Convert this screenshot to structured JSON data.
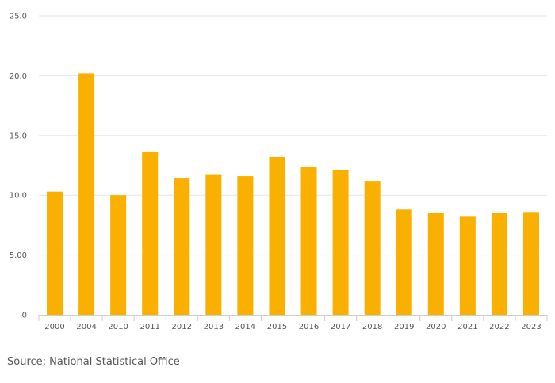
{
  "chart_data": {
    "type": "bar",
    "categories": [
      "2000",
      "2004",
      "2010",
      "2011",
      "2012",
      "2013",
      "2014",
      "2015",
      "2016",
      "2017",
      "2018",
      "2019",
      "2020",
      "2021",
      "2022",
      "2023"
    ],
    "values": [
      10.3,
      20.2,
      10.0,
      13.6,
      11.4,
      11.7,
      11.6,
      13.2,
      12.4,
      12.1,
      11.2,
      8.8,
      8.5,
      8.2,
      8.5,
      8.6
    ],
    "title": "",
    "xlabel": "",
    "ylabel": "",
    "ylim": [
      0,
      25
    ],
    "yticks": [
      0,
      5,
      10,
      15,
      20,
      25
    ],
    "ytick_labels": [
      "0",
      "5.00",
      "10.0",
      "15.0",
      "20.0",
      "25.0"
    ],
    "grid": true,
    "legend": "none",
    "bar_color": "#f9b000"
  },
  "footer": {
    "source": "Source: National Statistical Office"
  }
}
